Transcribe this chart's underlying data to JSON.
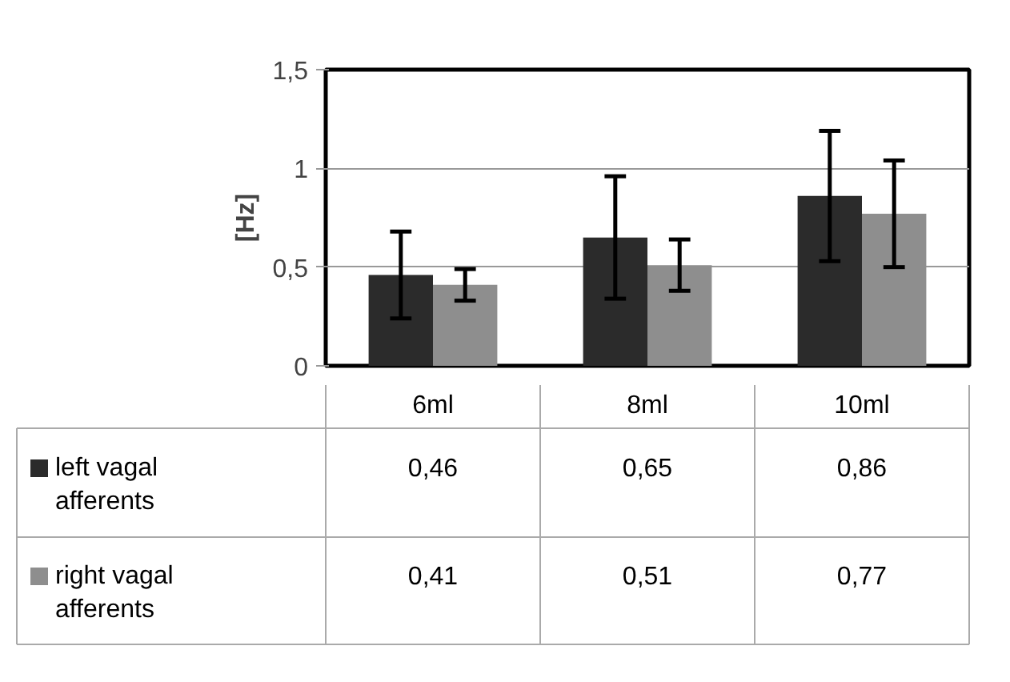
{
  "chart_data": {
    "type": "bar",
    "ylabel": "[Hz]",
    "categories": [
      "6ml",
      "8ml",
      "10ml"
    ],
    "series": [
      {
        "name": "left vagal afferents",
        "color": "#2b2b2b",
        "values": [
          0.46,
          0.65,
          0.86
        ],
        "errors": [
          0.22,
          0.31,
          0.33
        ],
        "value_labels": [
          "0,46",
          "0,65",
          "0,86"
        ]
      },
      {
        "name": "right vagal afferents",
        "color": "#8e8e8e",
        "values": [
          0.41,
          0.51,
          0.77
        ],
        "errors": [
          0.08,
          0.13,
          0.27
        ],
        "value_labels": [
          "0,41",
          "0,51",
          "0,77"
        ]
      }
    ],
    "ylim": [
      0,
      1.5
    ],
    "yticks": [
      0,
      {
        "value": 0.5,
        "label": "0,5"
      },
      1,
      {
        "value": 1.5,
        "label": "1,5"
      }
    ],
    "grid": "y",
    "legend": "bottom"
  }
}
